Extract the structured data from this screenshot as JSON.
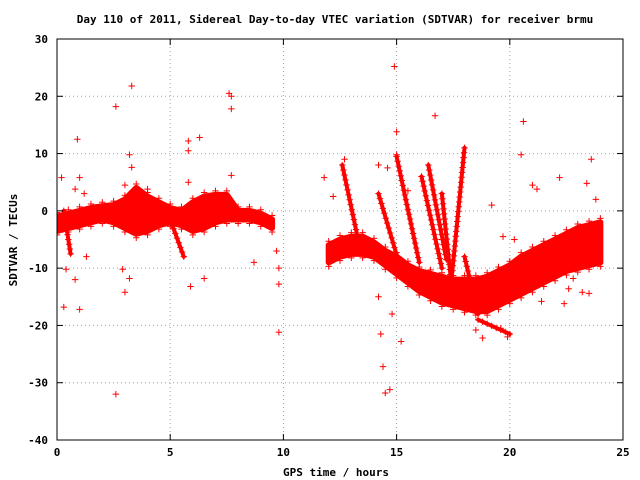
{
  "chart_data": {
    "type": "scatter",
    "title": "Day 110 of 2011, Sidereal Day-to-day VTEC variation (SDTVAR) for receiver brmu",
    "xlabel": "GPS time / hours",
    "ylabel": "SDTVAR / TECUs",
    "xlim": [
      0,
      25
    ],
    "ylim": [
      -40,
      30
    ],
    "xticks": [
      0,
      5,
      10,
      15,
      20,
      25
    ],
    "yticks": [
      -40,
      -30,
      -20,
      -10,
      0,
      10,
      20,
      30
    ],
    "grid": true,
    "marker": "+",
    "color": "#ff0000",
    "bands": [
      {
        "x": [
          0.0,
          0.5,
          1.0,
          1.5,
          2.0,
          2.5,
          3.0,
          3.5,
          4.0,
          4.5,
          5.0,
          5.5,
          6.0,
          6.5,
          7.0,
          7.5,
          8.0,
          8.5,
          9.0,
          9.5
        ],
        "low": [
          -3.5,
          -3.0,
          -2.5,
          -2.0,
          -1.5,
          -2.0,
          -3.0,
          -4.0,
          -3.5,
          -2.5,
          -2.0,
          -2.5,
          -3.5,
          -3.0,
          -2.0,
          -1.5,
          -1.5,
          -1.5,
          -2.0,
          -3.0
        ],
        "high": [
          -1.0,
          -0.5,
          0.0,
          0.5,
          0.8,
          1.0,
          2.0,
          4.0,
          2.5,
          1.5,
          0.5,
          0.0,
          1.5,
          2.5,
          2.8,
          2.8,
          0.0,
          0.0,
          -0.5,
          -1.5
        ]
      },
      {
        "x": [
          12.0,
          12.5,
          13.0,
          13.5,
          14.0,
          14.5,
          15.0,
          15.5,
          16.0,
          16.5,
          17.0,
          17.5,
          18.0,
          18.5,
          19.0,
          19.5,
          20.0,
          20.5,
          21.0,
          21.5,
          22.0,
          22.5,
          23.0,
          23.5,
          24.0
        ],
        "low": [
          -9.0,
          -8.0,
          -7.5,
          -7.5,
          -8.0,
          -9.5,
          -11.0,
          -12.5,
          -14.0,
          -15.0,
          -16.0,
          -16.5,
          -17.0,
          -17.5,
          -17.5,
          -16.5,
          -15.5,
          -14.5,
          -13.5,
          -12.5,
          -11.5,
          -10.5,
          -10.0,
          -9.5,
          -9.0
        ],
        "high": [
          -6.0,
          -5.0,
          -4.5,
          -4.5,
          -5.5,
          -7.0,
          -8.0,
          -9.5,
          -10.5,
          -11.0,
          -11.5,
          -12.0,
          -12.0,
          -12.0,
          -11.5,
          -10.5,
          -9.5,
          -8.0,
          -7.0,
          -6.0,
          -5.0,
          -4.0,
          -3.0,
          -2.5,
          -2.0
        ]
      }
    ],
    "streaks": [
      {
        "from": [
          12.6,
          8.0
        ],
        "to": [
          13.3,
          -5.0
        ]
      },
      {
        "from": [
          14.2,
          3.0
        ],
        "to": [
          15.1,
          -9.0
        ]
      },
      {
        "from": [
          15.0,
          9.5
        ],
        "to": [
          16.0,
          -9.0
        ]
      },
      {
        "from": [
          16.1,
          6.0
        ],
        "to": [
          17.0,
          -10.0
        ]
      },
      {
        "from": [
          16.4,
          8.0
        ],
        "to": [
          17.2,
          -8.5
        ]
      },
      {
        "from": [
          17.0,
          3.0
        ],
        "to": [
          17.4,
          -12.0
        ]
      },
      {
        "from": [
          17.4,
          -13.0
        ],
        "to": [
          18.0,
          11.0
        ]
      },
      {
        "from": [
          18.0,
          -8.0
        ],
        "to": [
          18.6,
          -18.0
        ]
      },
      {
        "from": [
          18.6,
          -19.0
        ],
        "to": [
          20.0,
          -21.5
        ]
      },
      {
        "from": [
          5.0,
          -1.5
        ],
        "to": [
          5.6,
          -8.0
        ]
      },
      {
        "from": [
          6.3,
          -3.0
        ],
        "to": [
          6.9,
          2.0
        ]
      },
      {
        "from": [
          0.3,
          0.0
        ],
        "to": [
          0.6,
          -7.5
        ]
      }
    ],
    "points": [
      [
        0.2,
        5.8
      ],
      [
        0.3,
        -16.8
      ],
      [
        0.4,
        -10.2
      ],
      [
        0.8,
        3.8
      ],
      [
        0.8,
        -12.0
      ],
      [
        0.9,
        12.5
      ],
      [
        1.0,
        -17.2
      ],
      [
        1.0,
        5.8
      ],
      [
        1.2,
        3.0
      ],
      [
        1.3,
        -8.0
      ],
      [
        2.6,
        18.2
      ],
      [
        2.6,
        -32.0
      ],
      [
        2.9,
        -10.2
      ],
      [
        3.0,
        -14.2
      ],
      [
        3.2,
        -11.8
      ],
      [
        3.3,
        21.8
      ],
      [
        3.2,
        9.8
      ],
      [
        3.3,
        7.6
      ],
      [
        3.0,
        4.5
      ],
      [
        4.0,
        3.8
      ],
      [
        5.8,
        12.2
      ],
      [
        5.8,
        10.5
      ],
      [
        5.9,
        -13.2
      ],
      [
        5.8,
        5.0
      ],
      [
        6.3,
        12.8
      ],
      [
        6.5,
        -11.8
      ],
      [
        7.6,
        20.5
      ],
      [
        7.7,
        20.0
      ],
      [
        7.7,
        17.8
      ],
      [
        7.7,
        6.2
      ],
      [
        8.7,
        -9.0
      ],
      [
        9.7,
        -7.0
      ],
      [
        9.8,
        -10.0
      ],
      [
        9.8,
        -12.8
      ],
      [
        9.8,
        -21.2
      ],
      [
        11.8,
        5.8
      ],
      [
        12.2,
        2.5
      ],
      [
        14.2,
        8.0
      ],
      [
        14.2,
        -15.0
      ],
      [
        14.3,
        -21.5
      ],
      [
        14.4,
        -27.2
      ],
      [
        14.5,
        -31.8
      ],
      [
        14.6,
        7.5
      ],
      [
        14.7,
        -31.2
      ],
      [
        14.9,
        25.2
      ],
      [
        15.0,
        13.8
      ],
      [
        15.0,
        9.8
      ],
      [
        15.2,
        -22.8
      ],
      [
        14.8,
        -18.0
      ],
      [
        15.5,
        3.5
      ],
      [
        16.7,
        16.6
      ],
      [
        17.0,
        -5.0
      ],
      [
        18.5,
        -20.8
      ],
      [
        18.8,
        -22.2
      ],
      [
        19.2,
        1.0
      ],
      [
        19.6,
        -20.5
      ],
      [
        19.9,
        -22.0
      ],
      [
        20.5,
        9.8
      ],
      [
        20.6,
        15.6
      ],
      [
        21.0,
        4.5
      ],
      [
        21.2,
        3.8
      ],
      [
        21.4,
        -15.8
      ],
      [
        22.2,
        5.8
      ],
      [
        22.4,
        -16.2
      ],
      [
        22.6,
        -13.6
      ],
      [
        23.2,
        -14.2
      ],
      [
        23.4,
        4.8
      ],
      [
        23.5,
        -14.4
      ],
      [
        23.6,
        9.0
      ],
      [
        23.8,
        2.0
      ],
      [
        22.8,
        -11.8
      ],
      [
        22.6,
        -4.0
      ],
      [
        20.2,
        -5.0
      ],
      [
        19.7,
        -4.5
      ],
      [
        12.7,
        9.0
      ]
    ]
  }
}
